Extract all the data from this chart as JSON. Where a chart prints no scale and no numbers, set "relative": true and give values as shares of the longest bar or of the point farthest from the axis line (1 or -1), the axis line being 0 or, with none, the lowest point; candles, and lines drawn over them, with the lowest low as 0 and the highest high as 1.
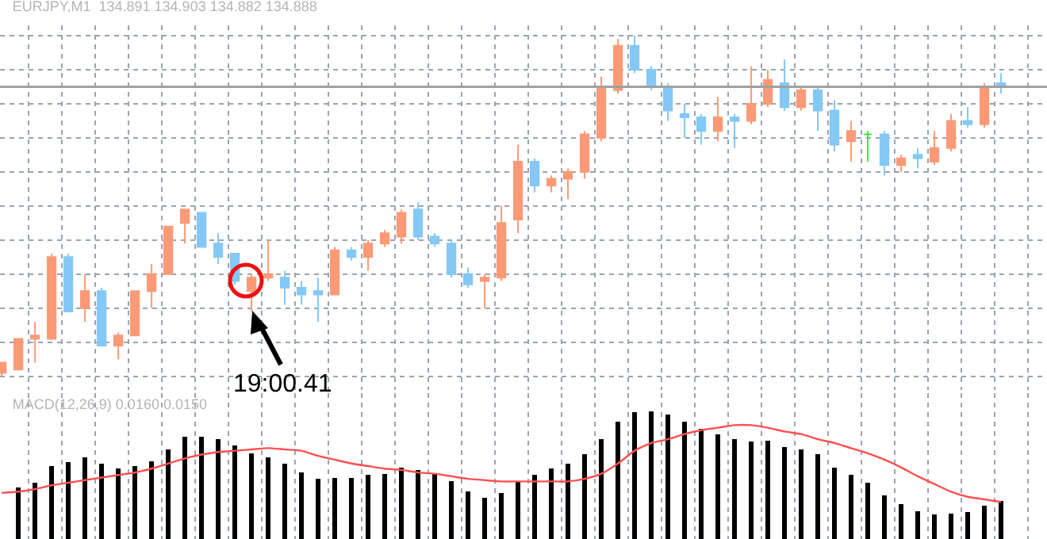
{
  "chart_data": [
    {
      "type": "candlestick",
      "title": "EURJPY,M1  134.891 134.903 134.882 134.888",
      "relative": true,
      "grid": true,
      "categories": [
        null,
        null,
        null,
        null,
        null,
        null,
        null,
        null,
        null,
        null,
        null,
        null,
        null,
        null,
        null,
        null,
        null,
        null,
        null,
        null,
        null,
        null,
        null,
        null,
        null,
        null,
        null,
        null,
        null,
        null,
        null,
        null,
        null,
        null,
        null,
        null,
        null,
        null,
        null,
        null,
        null,
        null,
        null,
        null,
        null,
        null,
        null,
        null,
        null,
        null,
        null,
        null,
        null,
        null,
        null,
        null,
        null,
        null,
        null,
        null,
        null
      ],
      "ohlc": [
        [
          0.01,
          0.04,
          0.0,
          0.04
        ],
        [
          0.02,
          0.11,
          0.02,
          0.11
        ],
        [
          0.11,
          0.16,
          0.04,
          0.12
        ],
        [
          0.11,
          0.36,
          0.11,
          0.35
        ],
        [
          0.35,
          0.36,
          0.19,
          0.19
        ],
        [
          0.2,
          0.3,
          0.16,
          0.25
        ],
        [
          0.25,
          0.26,
          0.09,
          0.09
        ],
        [
          0.09,
          0.13,
          0.05,
          0.12
        ],
        [
          0.12,
          0.25,
          0.12,
          0.25
        ],
        [
          0.25,
          0.33,
          0.2,
          0.3
        ],
        [
          0.3,
          0.44,
          0.3,
          0.44
        ],
        [
          0.45,
          0.49,
          0.39,
          0.49
        ],
        [
          0.48,
          0.48,
          0.38,
          0.38
        ],
        [
          0.39,
          0.42,
          0.33,
          0.35
        ],
        [
          0.36,
          0.36,
          0.27,
          0.28
        ],
        [
          0.25,
          0.3,
          0.19,
          0.29
        ],
        [
          0.29,
          0.4,
          0.28,
          0.3
        ],
        [
          0.29,
          0.31,
          0.21,
          0.26
        ],
        [
          0.26,
          0.28,
          0.21,
          0.24
        ],
        [
          0.25,
          0.29,
          0.16,
          0.24
        ],
        [
          0.24,
          0.38,
          0.24,
          0.37
        ],
        [
          0.37,
          0.38,
          0.34,
          0.35
        ],
        [
          0.35,
          0.4,
          0.31,
          0.39
        ],
        [
          0.39,
          0.43,
          0.38,
          0.42
        ],
        [
          0.41,
          0.49,
          0.39,
          0.48
        ],
        [
          0.49,
          0.51,
          0.4,
          0.41
        ],
        [
          0.41,
          0.42,
          0.38,
          0.39
        ],
        [
          0.39,
          0.4,
          0.29,
          0.3
        ],
        [
          0.3,
          0.32,
          0.26,
          0.27
        ],
        [
          0.28,
          0.3,
          0.2,
          0.29
        ],
        [
          0.29,
          0.5,
          0.28,
          0.45
        ],
        [
          0.46,
          0.68,
          0.42,
          0.63
        ],
        [
          0.63,
          0.64,
          0.54,
          0.56
        ],
        [
          0.56,
          0.59,
          0.54,
          0.58
        ],
        [
          0.58,
          0.61,
          0.52,
          0.6
        ],
        [
          0.6,
          0.72,
          0.58,
          0.71
        ],
        [
          0.7,
          0.88,
          0.69,
          0.85
        ],
        [
          0.84,
          0.99,
          0.83,
          0.97
        ],
        [
          0.97,
          1.0,
          0.89,
          0.9
        ],
        [
          0.9,
          0.91,
          0.84,
          0.85
        ],
        [
          0.85,
          0.86,
          0.75,
          0.78
        ],
        [
          0.77,
          0.8,
          0.7,
          0.76
        ],
        [
          0.76,
          0.77,
          0.68,
          0.72
        ],
        [
          0.72,
          0.82,
          0.69,
          0.76
        ],
        [
          0.76,
          0.77,
          0.67,
          0.75
        ],
        [
          0.75,
          0.91,
          0.74,
          0.8
        ],
        [
          0.8,
          0.9,
          0.79,
          0.87
        ],
        [
          0.86,
          0.93,
          0.78,
          0.79
        ],
        [
          0.79,
          0.85,
          0.78,
          0.84
        ],
        [
          0.84,
          0.85,
          0.72,
          0.78
        ],
        [
          0.78,
          0.81,
          0.66,
          0.68
        ],
        [
          0.69,
          0.75,
          0.63,
          0.72
        ],
        [
          0.71,
          0.72,
          0.63,
          0.71
        ],
        [
          0.71,
          0.72,
          0.59,
          0.62
        ],
        [
          0.62,
          0.65,
          0.6,
          0.64
        ],
        [
          0.65,
          0.67,
          0.61,
          0.64
        ],
        [
          0.63,
          0.72,
          0.62,
          0.67
        ],
        [
          0.67,
          0.77,
          0.66,
          0.75
        ],
        [
          0.75,
          0.79,
          0.73,
          0.74
        ],
        [
          0.74,
          0.86,
          0.73,
          0.85
        ],
        [
          0.86,
          0.89,
          0.83,
          0.85
        ]
      ],
      "colors": [
        "#fc9a77",
        "#fc9a77",
        "#fc9a77",
        "#fc9a77",
        "#84c8f5",
        "#fc9a77",
        "#84c8f5",
        "#fc9a77",
        "#fc9a77",
        "#fc9a77",
        "#fc9a77",
        "#fc9a77",
        "#84c8f5",
        "#84c8f5",
        "#84c8f5",
        "#fc9a77",
        "#fc9a77",
        "#84c8f5",
        "#84c8f5",
        "#84c8f5",
        "#fc9a77",
        "#84c8f5",
        "#fc9a77",
        "#fc9a77",
        "#fc9a77",
        "#84c8f5",
        "#84c8f5",
        "#84c8f5",
        "#84c8f5",
        "#fc9a77",
        "#fc9a77",
        "#fc9a77",
        "#84c8f5",
        "#fc9a77",
        "#fc9a77",
        "#fc9a77",
        "#fc9a77",
        "#fc9a77",
        "#84c8f5",
        "#84c8f5",
        "#84c8f5",
        "#84c8f5",
        "#84c8f5",
        "#fc9a77",
        "#84c8f5",
        "#fc9a77",
        "#fc9a77",
        "#84c8f5",
        "#fc9a77",
        "#84c8f5",
        "#84c8f5",
        "#fc9a77",
        "#4ce04c",
        "#84c8f5",
        "#fc9a77",
        "#84c8f5",
        "#fc9a77",
        "#fc9a77",
        "#84c8f5",
        "#fc9a77",
        "#84c8f5"
      ],
      "ref_lines": [
        {
          "axis": "y",
          "value": 0.85,
          "color": "#a0a0a0"
        }
      ],
      "annotations": [
        "19:00.41"
      ]
    },
    {
      "type": "bar",
      "title": "MACD(12,26,9) 0.0160 0.0150",
      "relative": true,
      "grid": "x",
      "categories": [
        null,
        null,
        null,
        null,
        null,
        null,
        null,
        null,
        null,
        null,
        null,
        null,
        null,
        null,
        null,
        null,
        null,
        null,
        null,
        null,
        null,
        null,
        null,
        null,
        null,
        null,
        null,
        null,
        null,
        null,
        null,
        null,
        null,
        null,
        null,
        null,
        null,
        null,
        null,
        null,
        null,
        null,
        null,
        null,
        null,
        null,
        null,
        null,
        null,
        null,
        null,
        null,
        null,
        null,
        null,
        null,
        null,
        null,
        null,
        null,
        null
      ],
      "series": [
        {
          "type": "bar",
          "color": "#000000",
          "values": [
            null,
            0.4,
            0.44,
            0.57,
            0.6,
            0.64,
            0.59,
            0.55,
            0.57,
            0.61,
            0.7,
            0.8,
            0.8,
            0.78,
            0.73,
            0.67,
            0.64,
            0.59,
            0.52,
            0.47,
            0.48,
            0.48,
            0.5,
            0.51,
            0.56,
            0.54,
            0.51,
            0.45,
            0.37,
            0.32,
            0.36,
            0.45,
            0.5,
            0.55,
            0.59,
            0.66,
            0.78,
            0.92,
            0.99,
            1.0,
            0.97,
            0.92,
            0.86,
            0.82,
            0.78,
            0.76,
            0.77,
            0.72,
            0.7,
            0.66,
            0.56,
            0.5,
            0.44,
            0.34,
            0.27,
            0.22,
            0.19,
            0.2,
            0.21,
            0.26,
            0.3
          ]
        },
        {
          "type": "line",
          "color": "#ff5050",
          "values": [
            0.36,
            0.37,
            0.39,
            0.42,
            0.44,
            0.46,
            0.48,
            0.5,
            0.52,
            0.55,
            0.59,
            0.63,
            0.66,
            0.68,
            0.69,
            0.7,
            0.71,
            0.7,
            0.69,
            0.65,
            0.62,
            0.59,
            0.57,
            0.55,
            0.54,
            0.52,
            0.51,
            0.49,
            0.47,
            0.46,
            0.45,
            0.45,
            0.45,
            0.45,
            0.45,
            0.47,
            0.51,
            0.59,
            0.69,
            0.75,
            0.78,
            0.82,
            0.85,
            0.87,
            0.89,
            0.89,
            0.87,
            0.84,
            0.82,
            0.78,
            0.75,
            0.71,
            0.67,
            0.62,
            0.56,
            0.49,
            0.43,
            0.37,
            0.33,
            0.31,
            0.29
          ]
        }
      ]
    }
  ]
}
